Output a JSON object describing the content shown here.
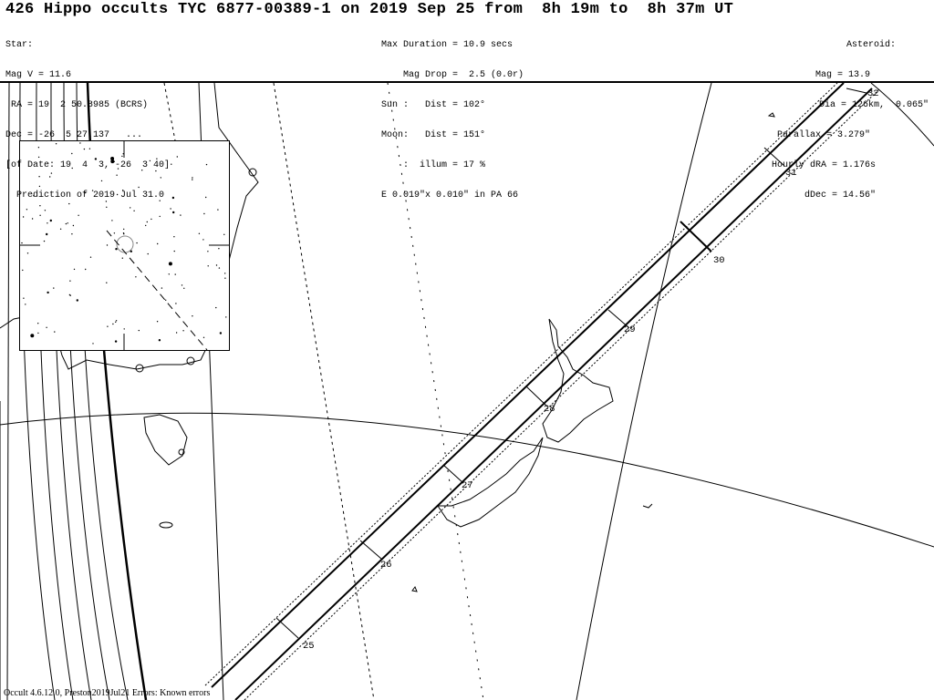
{
  "title": "426 Hippo occults TYC 6877-00389-1 on 2019 Sep 25 from  8h 19m to  8h 37m UT",
  "star": {
    "lines": [
      "Star:",
      "Mag V = 11.6",
      " RA = 19  2 50.8985 (BCRS)",
      "Dec = -26  5 27.137   ...",
      "[of Date: 19  4  3, -26  3 40]",
      "  Prediction of 2019 Jul 31.0"
    ]
  },
  "event": {
    "lines": [
      "Max Duration = 10.9 secs",
      "    Mag Drop =  2.5 (0.0r)",
      "Sun :   Dist = 102°",
      "Moon:   Dist = 151°",
      "    :  illum = 17 %",
      "E 0.019\"x 0.010\" in PA 66"
    ]
  },
  "asteroid": {
    "lines": [
      "Asteroid:",
      "Mag = 13.9",
      "Dia = 126km,  0.065\"",
      "Parallax = 3.279\"",
      "Hourly dRA = 1.176s",
      "dDec = 14.56\""
    ]
  },
  "time_ticks": [
    "25",
    "26",
    "27",
    "28",
    "29",
    "30",
    "31",
    "32"
  ],
  "footer": "Occult 4.6.12.0, Preston2019Jul21  Errors: Known errors"
}
